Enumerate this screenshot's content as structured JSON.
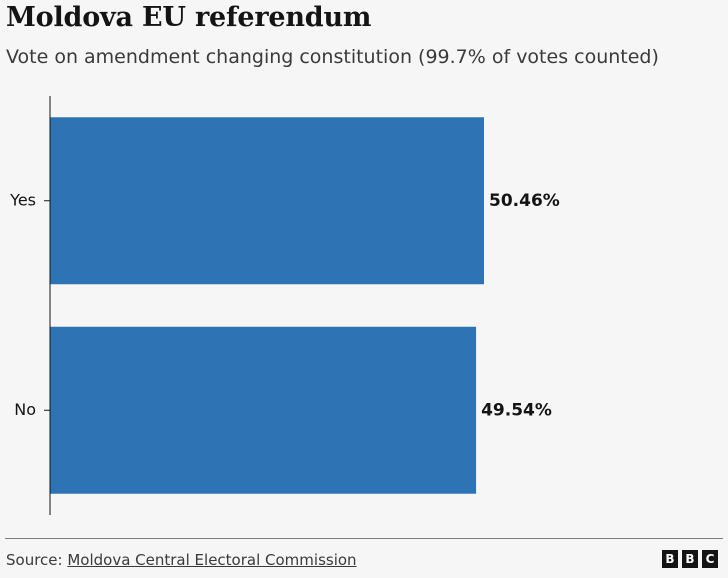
{
  "header": {
    "title": "Moldova EU referendum",
    "subtitle": "Vote on amendment changing constitution (99.7% of votes counted)"
  },
  "chart_data": {
    "type": "bar",
    "orientation": "horizontal",
    "title": "Moldova EU referendum",
    "subtitle": "Vote on amendment changing constitution (99.7% of votes counted)",
    "categories": [
      "Yes",
      "No"
    ],
    "values": [
      50.46,
      49.54
    ],
    "data_labels": [
      "50.46%",
      "49.54%"
    ],
    "xlabel": "",
    "ylabel": "",
    "xlim": [
      0,
      50.46
    ],
    "grid": false,
    "legend": "none",
    "colors": {
      "bar": "#2e74b5",
      "axis": "#141414",
      "text": "#141414"
    }
  },
  "footer": {
    "source_label": "Source: ",
    "source_link": "Moldova Central Electoral Commission",
    "logo_letters": [
      "B",
      "B",
      "C"
    ]
  }
}
